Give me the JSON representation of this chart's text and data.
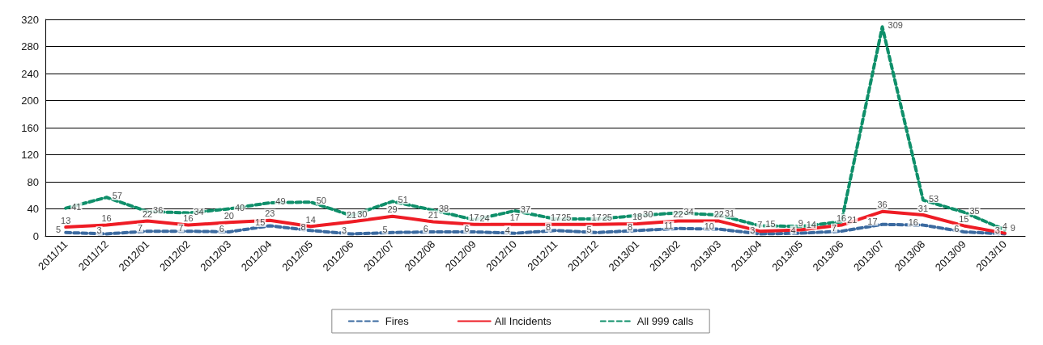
{
  "chart_data": {
    "type": "line",
    "categories": [
      "2011/11",
      "2011/12",
      "2012/01",
      "2012/02",
      "2012/03",
      "2012/04",
      "2012/05",
      "2012/06",
      "2012/07",
      "2012/08",
      "2012/09",
      "2012/10",
      "2012/11",
      "2012/12",
      "2013/01",
      "2013/02",
      "2013/03",
      "2013/04",
      "2013/05",
      "2013/06",
      "2013/07",
      "2013/08",
      "2013/09",
      "2013/10"
    ],
    "series": [
      {
        "name": "Fires",
        "color": "#3b6aa0",
        "line_style": "dashed",
        "values": [
          5,
          3,
          7,
          7,
          6,
          15,
          8,
          3,
          5,
          6,
          6,
          4,
          8,
          5,
          8,
          11,
          10,
          3,
          4,
          7,
          17,
          16,
          6,
          3
        ]
      },
      {
        "name": "All Incidents",
        "color": "#ee1c25",
        "line_style": "solid",
        "values": [
          13,
          16,
          22,
          16,
          20,
          23,
          14,
          21,
          29,
          21,
          17,
          17,
          17,
          17,
          18,
          22,
          22,
          7,
          9,
          16,
          36,
          31,
          15,
          4
        ]
      },
      {
        "name": "All 999 calls",
        "color": "#0f8f6a",
        "line_style": "dashed",
        "values": [
          41,
          57,
          36,
          34,
          40,
          49,
          50,
          30,
          51,
          38,
          24,
          37,
          25,
          25,
          30,
          34,
          31,
          15,
          14,
          21,
          309,
          53,
          35,
          9
        ]
      }
    ],
    "ylim": [
      0,
      320
    ],
    "yticks": [
      0,
      40,
      80,
      120,
      160,
      200,
      240,
      280,
      320
    ],
    "grid": "y",
    "legend": "bottom",
    "data_labels": true,
    "marker": "none"
  }
}
